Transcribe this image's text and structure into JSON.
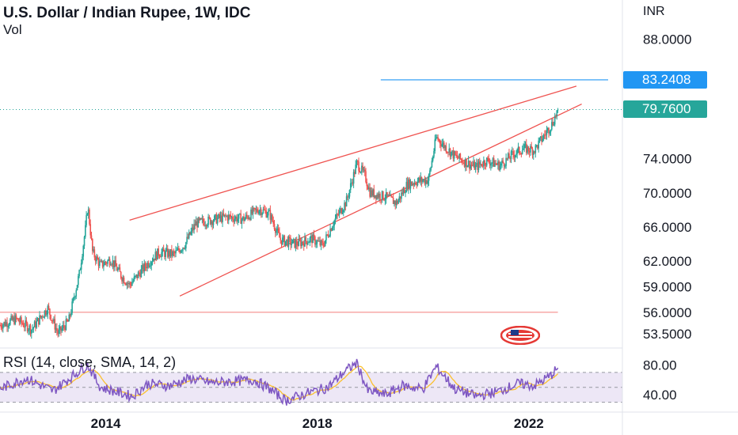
{
  "header": {
    "title": "U.S. Dollar / Indian Rupee, 1W, IDC",
    "volume_label": "Vol",
    "rsi_label": "RSI (14, close, SMA, 14, 2)",
    "currency": "INR"
  },
  "price_tags": {
    "alert_price": "83.2408",
    "last_price": "79.7600"
  },
  "colors": {
    "up_candle": "#26a69a",
    "down_candle": "#ef5350",
    "trendline": "#ef5350",
    "alert_line": "#2196f3",
    "last_price_tag": "#26a69a",
    "rsi_line": "#7e57c2",
    "rsi_sma": "#fbc02d",
    "rsi_band": "#ede7f6"
  },
  "icons": {
    "flag": "us-flag-icon"
  },
  "chart_data": {
    "type": "candlestick",
    "price_axis": {
      "ticks": [
        "88.0000",
        "74.0000",
        "70.0000",
        "66.0000",
        "62.0000",
        "59.0000",
        "56.0000",
        "53.5000"
      ],
      "range": [
        52.0,
        90.0
      ]
    },
    "time_axis": {
      "ticks": [
        "2014",
        "2018",
        "2022"
      ],
      "range": [
        2012.0,
        2023.5
      ]
    },
    "rsi_axis": {
      "ticks": [
        "80.00",
        "40.00"
      ],
      "range": [
        20,
        90
      ]
    },
    "price_path": [
      [
        2012.0,
        54.5
      ],
      [
        2012.3,
        55.2
      ],
      [
        2012.6,
        54.0
      ],
      [
        2012.9,
        56.5
      ],
      [
        2013.1,
        53.5
      ],
      [
        2013.3,
        55.0
      ],
      [
        2013.5,
        60.5
      ],
      [
        2013.62,
        66.0
      ],
      [
        2013.66,
        68.5
      ],
      [
        2013.75,
        63.0
      ],
      [
        2013.9,
        61.5
      ],
      [
        2014.1,
        62.2
      ],
      [
        2014.3,
        60.2
      ],
      [
        2014.45,
        59.2
      ],
      [
        2014.6,
        60.3
      ],
      [
        2014.8,
        61.8
      ],
      [
        2015.0,
        63.0
      ],
      [
        2015.3,
        62.8
      ],
      [
        2015.5,
        64.0
      ],
      [
        2015.7,
        66.4
      ],
      [
        2016.0,
        66.8
      ],
      [
        2016.3,
        67.2
      ],
      [
        2016.6,
        66.9
      ],
      [
        2016.9,
        68.1
      ],
      [
        2017.1,
        67.5
      ],
      [
        2017.3,
        64.5
      ],
      [
        2017.6,
        64.0
      ],
      [
        2017.9,
        64.6
      ],
      [
        2018.1,
        63.8
      ],
      [
        2018.3,
        66.5
      ],
      [
        2018.55,
        69.0
      ],
      [
        2018.75,
        73.5
      ],
      [
        2018.9,
        72.0
      ],
      [
        2019.0,
        70.0
      ],
      [
        2019.3,
        69.5
      ],
      [
        2019.5,
        68.8
      ],
      [
        2019.7,
        71.0
      ],
      [
        2019.9,
        71.4
      ],
      [
        2020.1,
        71.5
      ],
      [
        2020.25,
        76.5
      ],
      [
        2020.4,
        75.5
      ],
      [
        2020.6,
        74.3
      ],
      [
        2020.8,
        73.6
      ],
      [
        2021.0,
        73.0
      ],
      [
        2021.2,
        73.8
      ],
      [
        2021.45,
        73.2
      ],
      [
        2021.7,
        74.5
      ],
      [
        2021.9,
        75.2
      ],
      [
        2022.1,
        75.0
      ],
      [
        2022.3,
        76.8
      ],
      [
        2022.45,
        78.2
      ],
      [
        2022.55,
        79.76
      ]
    ],
    "rsi_path": [
      [
        2012.0,
        48
      ],
      [
        2012.5,
        62
      ],
      [
        2013.0,
        45
      ],
      [
        2013.5,
        72
      ],
      [
        2013.66,
        80
      ],
      [
        2013.9,
        50
      ],
      [
        2014.2,
        44
      ],
      [
        2014.5,
        38
      ],
      [
        2014.8,
        55
      ],
      [
        2015.2,
        52
      ],
      [
        2015.6,
        62
      ],
      [
        2016.0,
        56
      ],
      [
        2016.4,
        58
      ],
      [
        2016.8,
        60
      ],
      [
        2017.1,
        48
      ],
      [
        2017.4,
        32
      ],
      [
        2017.8,
        42
      ],
      [
        2018.2,
        50
      ],
      [
        2018.5,
        70
      ],
      [
        2018.75,
        83
      ],
      [
        2018.95,
        45
      ],
      [
        2019.3,
        40
      ],
      [
        2019.6,
        52
      ],
      [
        2020.0,
        48
      ],
      [
        2020.25,
        78
      ],
      [
        2020.6,
        48
      ],
      [
        2021.0,
        38
      ],
      [
        2021.4,
        44
      ],
      [
        2021.8,
        55
      ],
      [
        2022.1,
        52
      ],
      [
        2022.4,
        65
      ],
      [
        2022.55,
        76
      ]
    ],
    "channel": {
      "upper": [
        [
          2014.45,
          66.8
        ],
        [
          2022.9,
          82.5
        ]
      ],
      "lower": [
        [
          2015.4,
          57.9
        ],
        [
          2023.0,
          80.4
        ]
      ],
      "support": [
        [
          2012.0,
          56.0
        ],
        [
          2022.55,
          56.0
        ]
      ],
      "alert": [
        [
          2019.2,
          83.2408
        ],
        [
          2023.5,
          83.2408
        ]
      ]
    }
  }
}
